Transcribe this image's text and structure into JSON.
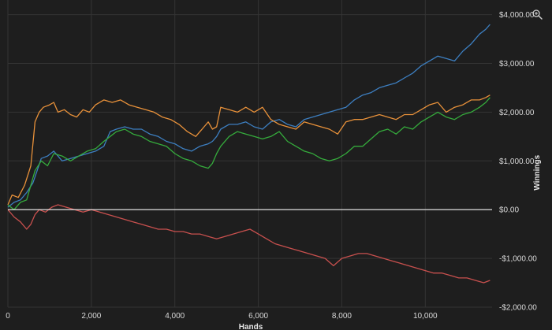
{
  "chart_data": {
    "type": "line",
    "xlabel": "Hands",
    "ylabel": "Winnings",
    "xlim": [
      0,
      11600
    ],
    "ylim": [
      -2000,
      4300
    ],
    "x_ticks": [
      0,
      2000,
      4000,
      6000,
      8000,
      10000
    ],
    "x_tick_labels": [
      "0",
      "2,000",
      "4,000",
      "6,000",
      "8,000",
      "10,000"
    ],
    "y_ticks": [
      -2000,
      -1000,
      0,
      1000,
      2000,
      3000,
      4000
    ],
    "y_tick_labels": [
      "-$2,000.00",
      "-$1,000.00",
      "$0.00",
      "$1,000.00",
      "$2,000.00",
      "$3,000.00",
      "$4,000.00"
    ],
    "grid": true,
    "zero_line": true,
    "series": [
      {
        "color": "#3d7fc1",
        "x": [
          0,
          150,
          300,
          450,
          600,
          700,
          800,
          950,
          1100,
          1300,
          1500,
          1700,
          1900,
          2100,
          2300,
          2450,
          2600,
          2800,
          3000,
          3200,
          3400,
          3600,
          3800,
          4000,
          4200,
          4400,
          4600,
          4800,
          4900,
          5000,
          5100,
          5300,
          5500,
          5700,
          5900,
          6100,
          6300,
          6500,
          6700,
          6900,
          7100,
          7300,
          7500,
          7700,
          7900,
          8100,
          8300,
          8500,
          8700,
          8900,
          9100,
          9300,
          9500,
          9700,
          9900,
          10100,
          10300,
          10500,
          10700,
          10900,
          11100,
          11300,
          11450,
          11550
        ],
        "y": [
          50,
          150,
          200,
          350,
          550,
          800,
          1050,
          1100,
          1200,
          1000,
          1050,
          1100,
          1150,
          1200,
          1300,
          1600,
          1650,
          1700,
          1650,
          1650,
          1550,
          1500,
          1400,
          1350,
          1250,
          1200,
          1300,
          1350,
          1400,
          1500,
          1650,
          1750,
          1750,
          1800,
          1700,
          1650,
          1800,
          1850,
          1750,
          1700,
          1850,
          1900,
          1950,
          2000,
          2050,
          2100,
          2250,
          2350,
          2400,
          2500,
          2550,
          2600,
          2700,
          2800,
          2950,
          3050,
          3150,
          3100,
          3050,
          3250,
          3400,
          3600,
          3700,
          3800
        ]
      },
      {
        "color": "#e8913a",
        "x": [
          0,
          100,
          250,
          400,
          550,
          650,
          750,
          850,
          1000,
          1100,
          1200,
          1350,
          1500,
          1650,
          1800,
          1950,
          2100,
          2300,
          2500,
          2700,
          2900,
          3100,
          3300,
          3500,
          3700,
          3900,
          4100,
          4300,
          4500,
          4700,
          4800,
          4900,
          5000,
          5100,
          5300,
          5500,
          5700,
          5900,
          6100,
          6300,
          6500,
          6700,
          6900,
          7100,
          7300,
          7500,
          7700,
          7900,
          8100,
          8300,
          8500,
          8700,
          8900,
          9100,
          9300,
          9500,
          9700,
          9900,
          10100,
          10300,
          10500,
          10700,
          10900,
          11100,
          11300,
          11450,
          11550
        ],
        "y": [
          100,
          300,
          250,
          500,
          900,
          1800,
          2000,
          2100,
          2150,
          2200,
          2000,
          2050,
          1950,
          1900,
          2050,
          2000,
          2150,
          2250,
          2200,
          2250,
          2150,
          2100,
          2050,
          2000,
          1900,
          1850,
          1750,
          1600,
          1500,
          1700,
          1800,
          1650,
          1700,
          2100,
          2050,
          2000,
          2100,
          2000,
          2100,
          1850,
          1750,
          1700,
          1650,
          1800,
          1750,
          1700,
          1650,
          1550,
          1800,
          1850,
          1850,
          1900,
          1950,
          1900,
          1850,
          1950,
          1950,
          2050,
          2150,
          2200,
          2000,
          2100,
          2150,
          2250,
          2250,
          2300,
          2350
        ]
      },
      {
        "color": "#35ab3c",
        "x": [
          0,
          150,
          300,
          450,
          550,
          650,
          800,
          950,
          1100,
          1300,
          1500,
          1700,
          1900,
          2100,
          2300,
          2450,
          2600,
          2800,
          3000,
          3200,
          3400,
          3600,
          3800,
          4000,
          4200,
          4400,
          4600,
          4800,
          4900,
          5000,
          5100,
          5300,
          5500,
          5700,
          5900,
          6100,
          6300,
          6500,
          6700,
          6900,
          7100,
          7300,
          7500,
          7700,
          7900,
          8100,
          8300,
          8500,
          8700,
          8900,
          9100,
          9300,
          9500,
          9700,
          9900,
          10100,
          10300,
          10500,
          10700,
          10900,
          11100,
          11300,
          11450,
          11550
        ],
        "y": [
          100,
          0,
          150,
          200,
          500,
          800,
          1000,
          900,
          1150,
          1100,
          1000,
          1100,
          1200,
          1250,
          1400,
          1500,
          1600,
          1650,
          1550,
          1500,
          1400,
          1350,
          1300,
          1150,
          1050,
          1000,
          900,
          850,
          950,
          1150,
          1300,
          1500,
          1600,
          1550,
          1500,
          1450,
          1500,
          1600,
          1400,
          1300,
          1200,
          1150,
          1050,
          1000,
          1050,
          1150,
          1300,
          1300,
          1450,
          1600,
          1650,
          1550,
          1700,
          1650,
          1800,
          1900,
          2000,
          1900,
          1850,
          1950,
          2000,
          2100,
          2200,
          2300
        ]
      },
      {
        "color": "#c8504e",
        "x": [
          0,
          150,
          300,
          450,
          550,
          650,
          750,
          900,
          1050,
          1200,
          1400,
          1600,
          1800,
          2000,
          2200,
          2400,
          2600,
          2800,
          3000,
          3200,
          3400,
          3600,
          3800,
          4000,
          4200,
          4400,
          4600,
          4800,
          5000,
          5200,
          5400,
          5600,
          5800,
          6000,
          6200,
          6400,
          6600,
          6800,
          7000,
          7200,
          7400,
          7600,
          7800,
          8000,
          8200,
          8400,
          8600,
          8800,
          9000,
          9200,
          9400,
          9600,
          9800,
          10000,
          10200,
          10400,
          10600,
          10800,
          11000,
          11200,
          11400,
          11550
        ],
        "y": [
          0,
          -150,
          -250,
          -400,
          -300,
          -100,
          0,
          -50,
          50,
          100,
          50,
          0,
          -50,
          0,
          -50,
          -100,
          -150,
          -200,
          -250,
          -300,
          -350,
          -400,
          -400,
          -450,
          -450,
          -500,
          -500,
          -550,
          -600,
          -550,
          -500,
          -450,
          -400,
          -500,
          -600,
          -700,
          -750,
          -800,
          -850,
          -900,
          -950,
          -1000,
          -1150,
          -1000,
          -950,
          -900,
          -900,
          -950,
          -1000,
          -1050,
          -1100,
          -1150,
          -1200,
          -1250,
          -1300,
          -1300,
          -1350,
          -1400,
          -1400,
          -1450,
          -1500,
          -1450
        ]
      }
    ]
  },
  "toolbar": {
    "zoom_icon": "zoom-icon"
  }
}
